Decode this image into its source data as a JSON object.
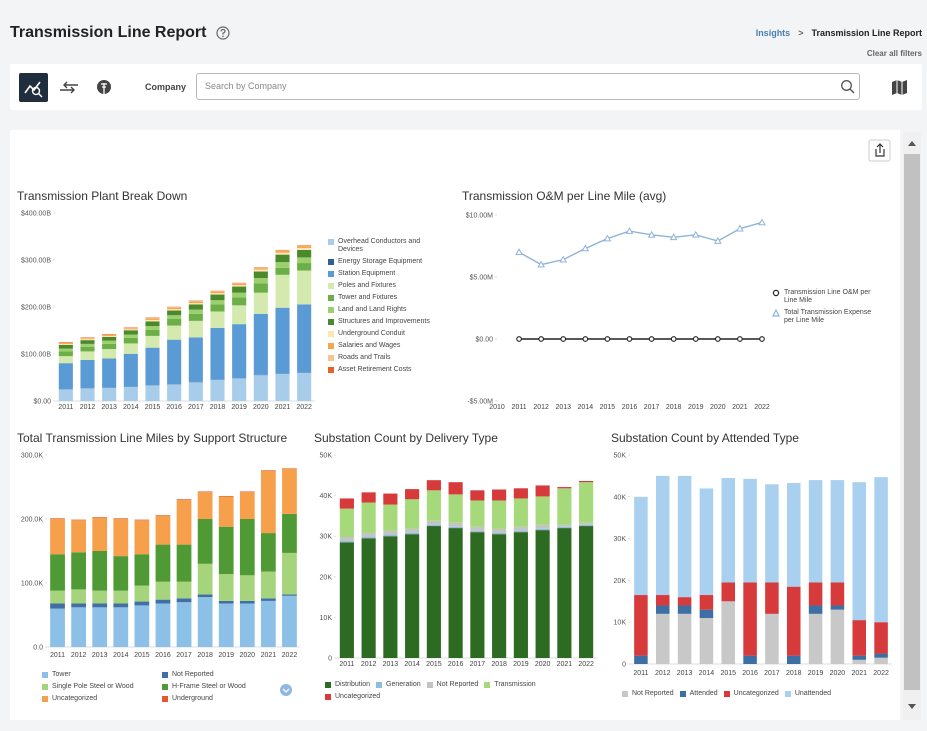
{
  "page": {
    "title": "Transmission Line Report",
    "breadcrumb": [
      "Insights",
      "Transmission Line Report"
    ],
    "clear_filters": "Clear all filters",
    "filter_label": "Company",
    "search_placeholder": "Search by Company"
  },
  "chart_data": [
    {
      "type": "bar",
      "stacked": true,
      "title": "Transmission Plant Break Down",
      "categories": [
        "2011",
        "2012",
        "2013",
        "2014",
        "2015",
        "2016",
        "2017",
        "2018",
        "2019",
        "2020",
        "2021",
        "2022"
      ],
      "ylim": [
        0,
        400
      ],
      "yticks": [
        {
          "value": 0,
          "label": "$0.00"
        },
        {
          "value": 100,
          "label": "$100.00B"
        },
        {
          "value": 200,
          "label": "$200.00B"
        },
        {
          "value": 300,
          "label": "$300.00B"
        },
        {
          "value": 400,
          "label": "$400.00B"
        }
      ],
      "series": [
        {
          "name": "Overhead Conductors and Devices",
          "color": "#a8cdea",
          "values": [
            25,
            27,
            28,
            30,
            33,
            35,
            40,
            45,
            48,
            55,
            58,
            60
          ]
        },
        {
          "name": "Energy Storage Equipment",
          "color": "#2f5f98",
          "values": [
            0.5,
            0.5,
            0.5,
            0.5,
            0.5,
            0.5,
            0.5,
            0.5,
            0.5,
            0.5,
            0.5,
            0.5
          ]
        },
        {
          "name": "Station Equipment",
          "color": "#5b9bd5",
          "values": [
            55,
            60,
            62,
            70,
            80,
            95,
            95,
            110,
            115,
            130,
            140,
            145
          ]
        },
        {
          "name": "Poles and Fixtures",
          "color": "#d4e9ad",
          "values": [
            15,
            18,
            20,
            22,
            25,
            30,
            35,
            35,
            40,
            45,
            70,
            72
          ]
        },
        {
          "name": "Tower and Fixtures",
          "color": "#6cae47",
          "values": [
            10,
            10,
            11,
            12,
            13,
            14,
            15,
            15,
            17,
            20,
            15,
            16
          ]
        },
        {
          "name": "Land and Land Rights",
          "color": "#9ccf6e",
          "values": [
            6,
            6,
            7,
            7,
            8,
            8,
            9,
            9,
            10,
            11,
            12,
            12
          ]
        },
        {
          "name": "Structures and Improvements",
          "color": "#4a8a2c",
          "values": [
            8,
            8,
            8,
            9,
            10,
            10,
            11,
            12,
            13,
            14,
            16,
            16
          ]
        },
        {
          "name": "Underground Conduit",
          "color": "#fde7b4",
          "values": [
            2,
            2,
            2,
            2,
            3,
            3,
            3,
            3,
            3,
            4,
            4,
            4
          ]
        },
        {
          "name": "Salaries and Wages",
          "color": "#f6a54c",
          "values": [
            2,
            2,
            2,
            2,
            3,
            3,
            3,
            3,
            3,
            3,
            4,
            4
          ]
        },
        {
          "name": "Roads and Trails",
          "color": "#f8c58a",
          "values": [
            1,
            1,
            1,
            1,
            1,
            1,
            1,
            1,
            1,
            1,
            1,
            1
          ]
        },
        {
          "name": "Asset Retirement Costs",
          "color": "#e8602c",
          "values": [
            1,
            1,
            1,
            1,
            1,
            1,
            1,
            1,
            1,
            1,
            1,
            1
          ]
        }
      ]
    },
    {
      "type": "line",
      "title": "Transmission O&M per Line Mile (avg)",
      "categories": [
        "2010",
        "2011",
        "2012",
        "2013",
        "2014",
        "2015",
        "2016",
        "2017",
        "2018",
        "2019",
        "2020",
        "2021",
        "2022"
      ],
      "ylim": [
        -5,
        10
      ],
      "yticks": [
        {
          "value": -5,
          "label": "-$5.00M"
        },
        {
          "value": 0,
          "label": "$0.00"
        },
        {
          "value": 5,
          "label": "$5.00M"
        },
        {
          "value": 10,
          "label": "$10.00M"
        }
      ],
      "series": [
        {
          "name": "Transmission Line O&M per Line Mile",
          "color": "#222222",
          "marker": "circle",
          "values": [
            null,
            0,
            0,
            0,
            0,
            0,
            0,
            0,
            0,
            0,
            0,
            0,
            0
          ]
        },
        {
          "name": "Total Transmission Expense per Line Mile",
          "color": "#8eb4d9",
          "marker": "triangle",
          "values": [
            null,
            7.0,
            6.0,
            6.4,
            7.3,
            8.1,
            8.7,
            8.4,
            8.2,
            8.4,
            7.9,
            8.9,
            9.4
          ]
        }
      ]
    },
    {
      "type": "bar",
      "stacked": true,
      "title": "Total Transmission Line Miles by Support Structure",
      "categories": [
        "2011",
        "2012",
        "2013",
        "2014",
        "2015",
        "2016",
        "2017",
        "2018",
        "2019",
        "2020",
        "2021",
        "2022"
      ],
      "ylim": [
        0,
        300
      ],
      "yticks": [
        {
          "value": 0,
          "label": "0.0"
        },
        {
          "value": 100,
          "label": "100.0K"
        },
        {
          "value": 200,
          "label": "200.0K"
        },
        {
          "value": 300,
          "label": "300.0K"
        }
      ],
      "series": [
        {
          "name": "Tower",
          "color": "#8cc0e6",
          "values": [
            60,
            62,
            62,
            62,
            65,
            68,
            70,
            78,
            68,
            68,
            72,
            80
          ]
        },
        {
          "name": "Not Reported",
          "color": "#3f6fa5",
          "values": [
            8,
            6,
            6,
            6,
            6,
            6,
            6,
            4,
            4,
            4,
            4,
            2
          ]
        },
        {
          "name": "Single Pole Steel or Wood",
          "color": "#a6d47c",
          "values": [
            20,
            22,
            20,
            20,
            25,
            28,
            26,
            48,
            42,
            40,
            42,
            65
          ]
        },
        {
          "name": "H-Frame Steel or Wood",
          "color": "#4f9a35",
          "values": [
            57,
            58,
            62,
            54,
            49,
            58,
            58,
            70,
            74,
            88,
            60,
            61
          ]
        },
        {
          "name": "Uncategorized",
          "color": "#f7a04b",
          "values": [
            55,
            50,
            52,
            58,
            53,
            45,
            70,
            42,
            47,
            42,
            97,
            70
          ]
        },
        {
          "name": "Underground",
          "color": "#e05a2a",
          "values": [
            1,
            1,
            1,
            1,
            1,
            1,
            1,
            1,
            1,
            1,
            1,
            1
          ]
        }
      ]
    },
    {
      "type": "bar",
      "stacked": true,
      "title": "Substation Count by Delivery Type",
      "categories": [
        "2011",
        "2012",
        "2013",
        "2014",
        "2015",
        "2016",
        "2017",
        "2018",
        "2019",
        "2020",
        "2021",
        "2022"
      ],
      "ylim": [
        0,
        50
      ],
      "yticks": [
        0,
        {
          "value": 10,
          "label": "10K"
        },
        {
          "value": 20,
          "label": "20K"
        },
        {
          "value": 30,
          "label": "30K"
        },
        {
          "value": 40,
          "label": "40K"
        },
        {
          "value": 50,
          "label": "50K"
        }
      ],
      "series": [
        {
          "name": "Distribution",
          "color": "#2e6b22",
          "values": [
            28.5,
            29.5,
            30,
            30.5,
            32.5,
            32,
            31,
            30.5,
            31,
            31.5,
            32,
            32.5
          ]
        },
        {
          "name": "Generation",
          "color": "#8dbde0",
          "values": [
            0.3,
            0.3,
            0.3,
            0.3,
            0.3,
            0.3,
            0.3,
            0.3,
            0.3,
            0.3,
            0.3,
            0.3
          ]
        },
        {
          "name": "Not Reported",
          "color": "#c4c4c4",
          "values": [
            1,
            1,
            1,
            1,
            1,
            1,
            1,
            1,
            1,
            1,
            0.5,
            0.5
          ]
        },
        {
          "name": "Transmission",
          "color": "#a6d97a",
          "values": [
            7,
            7.5,
            6.5,
            7.3,
            7.5,
            7,
            6.5,
            7,
            7,
            7,
            9,
            10
          ]
        },
        {
          "name": "Uncategorized",
          "color": "#d63a3a",
          "values": [
            2.5,
            2.5,
            2.7,
            2.5,
            2.5,
            3,
            2.5,
            2.7,
            2.5,
            2.7,
            0.3,
            0.3
          ]
        }
      ]
    },
    {
      "type": "bar",
      "stacked": true,
      "title": "Substation Count by Attended Type",
      "categories": [
        "2011",
        "2012",
        "2013",
        "2014",
        "2015",
        "2016",
        "2017",
        "2018",
        "2019",
        "2020",
        "2021",
        "2022"
      ],
      "ylim": [
        0,
        50
      ],
      "yticks": [
        0,
        {
          "value": 10,
          "label": "10K"
        },
        {
          "value": 20,
          "label": "20K"
        },
        {
          "value": 30,
          "label": "30K"
        },
        {
          "value": 40,
          "label": "40K"
        },
        {
          "value": 50,
          "label": "50K"
        }
      ],
      "series": [
        {
          "name": "Not Reported",
          "color": "#c8c8c8",
          "values": [
            0,
            12,
            12,
            11,
            15,
            0,
            12,
            0,
            12,
            13,
            1,
            1.5
          ]
        },
        {
          "name": "Attended",
          "color": "#3d6fa5",
          "values": [
            2,
            2,
            2,
            2,
            0,
            2,
            0,
            2,
            2,
            1,
            1,
            1
          ]
        },
        {
          "name": "Uncategorized",
          "color": "#d63a3a",
          "values": [
            14.5,
            2.5,
            2,
            3.5,
            4.5,
            17.5,
            7.5,
            16.5,
            5.5,
            5.5,
            8.5,
            7.5
          ]
        },
        {
          "name": "Unattended",
          "color": "#a9d1ef",
          "values": [
            23.5,
            28.5,
            29,
            25.5,
            25,
            24.8,
            23.5,
            24.8,
            24.5,
            24.5,
            33,
            34.7
          ]
        }
      ]
    }
  ]
}
